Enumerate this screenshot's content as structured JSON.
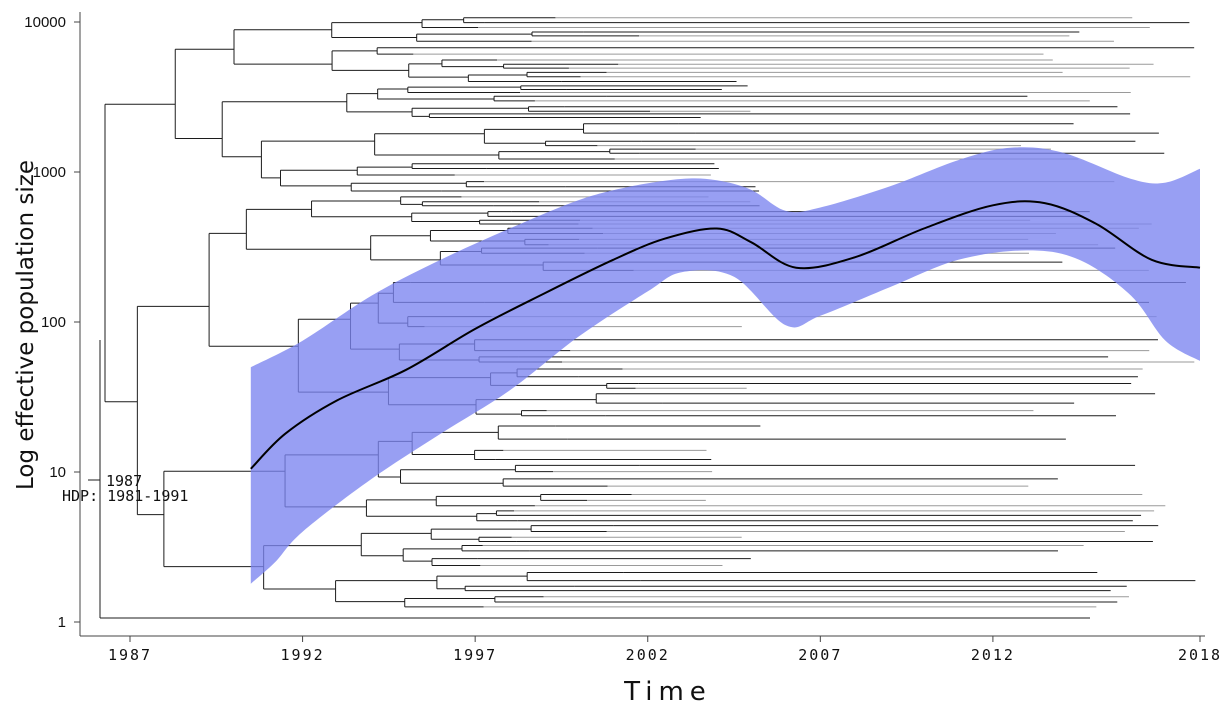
{
  "chart_data": {
    "type": "area",
    "title": "",
    "xlabel": "Time",
    "ylabel": "Log effective population size",
    "x_ticks": [
      "1987",
      "1992",
      "1997",
      "2002",
      "2007",
      "2012",
      "2018"
    ],
    "y_ticks": [
      "10000",
      "1000",
      "100",
      "10",
      "1"
    ],
    "y_scale": "log",
    "xlim": [
      1987,
      2018
    ],
    "ylim": [
      1,
      10000
    ],
    "grid": false,
    "legend": "none",
    "annotations": [
      "1987",
      "HDP: 1981-1991"
    ],
    "series": [
      {
        "kind": "median",
        "x": [
          1990.5,
          1991.5,
          1993,
          1995,
          1997,
          1999,
          2001,
          2002.5,
          2004,
          2005,
          2006.3,
          2008,
          2010,
          2012,
          2013.5,
          2015,
          2016.6,
          2018
        ],
        "y": [
          10.5,
          18,
          30,
          48,
          90,
          155,
          260,
          360,
          420,
          340,
          230,
          270,
          420,
          600,
          620,
          450,
          260,
          230
        ]
      },
      {
        "kind": "hpd_upper",
        "x": [
          1990.5,
          1992,
          1994,
          1996,
          1998,
          2000,
          2001.5,
          2003,
          2004,
          2005,
          2006,
          2007,
          2009,
          2011,
          2012.5,
          2014,
          2016,
          2017,
          2018
        ],
        "y": [
          50,
          75,
          150,
          260,
          420,
          650,
          800,
          900,
          880,
          760,
          550,
          580,
          800,
          1200,
          1450,
          1350,
          900,
          850,
          1050
        ]
      },
      {
        "kind": "hpd_lower",
        "x": [
          1990.5,
          1991.2,
          1992,
          1994,
          1996,
          1998,
          2000,
          2002,
          2003,
          2004.5,
          2006,
          2007,
          2009,
          2011,
          2013,
          2014.5,
          2016,
          2017,
          2018
        ],
        "y": [
          1.8,
          2.5,
          4,
          9,
          18,
          35,
          80,
          160,
          215,
          200,
          95,
          110,
          170,
          260,
          300,
          260,
          150,
          75,
          55
        ]
      }
    ],
    "colors": {
      "hpd_band": "#7b84f0",
      "median_line": "#000000",
      "tree": "#1c1c1c"
    }
  }
}
